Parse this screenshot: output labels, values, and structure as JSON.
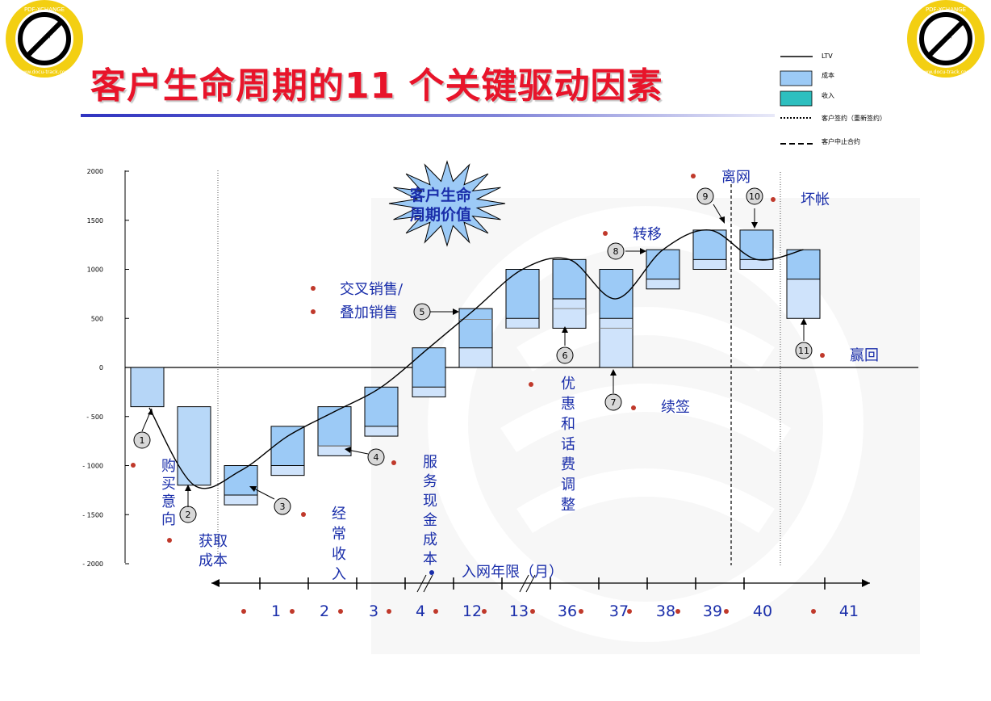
{
  "title": "客户生命周期的11 个关键驱动因素",
  "stamp": {
    "top": "PDF-XCHANGE",
    "mid": "Click to buy NOW!",
    "bottom": "www.docu-track.com"
  },
  "legend": [
    {
      "label": "LTV",
      "kind": "line"
    },
    {
      "label": "成本",
      "kind": "box",
      "color": "#9ccaf6"
    },
    {
      "label": "收入",
      "kind": "box",
      "color": "#2dbfbf"
    },
    {
      "label": "客户签约（重新签约）",
      "kind": "dotted"
    },
    {
      "label": "客户中止合约",
      "kind": "dashed"
    }
  ],
  "star_label": [
    "客户生命",
    "周期价值"
  ],
  "axis_caption": "入网年限（月）",
  "colors": {
    "title": "#e8142a",
    "box_fill": "#9ccaf6",
    "box_light": "#cfe3fb",
    "bullet": "#c0392b",
    "text": "#1a2eaa"
  },
  "chart_data": {
    "type": "waterfall",
    "ylim": [
      -2000,
      2000
    ],
    "y_ticks": [
      2000,
      1500,
      1000,
      500,
      0,
      -500,
      -1000,
      -1500,
      -2000
    ],
    "y_tick_labels": [
      "2000",
      "1500",
      "1000",
      "500",
      "0",
      "- 500",
      "- 1000",
      "- 1500",
      "- 2000"
    ],
    "categories": [
      "1",
      "2",
      "3",
      "4",
      "12",
      "13",
      "36",
      "37",
      "38",
      "39",
      "40",
      "41"
    ],
    "bars": [
      {
        "top": 0,
        "bottom": -400,
        "mid": null
      },
      {
        "top": -400,
        "bottom": -1200,
        "mid": -1200
      },
      {
        "top": -1000,
        "bottom": -1400,
        "mid": -1300
      },
      {
        "top": -600,
        "bottom": -1100,
        "mid": -1000
      },
      {
        "top": -400,
        "bottom": -900,
        "mid": -800
      },
      {
        "top": -200,
        "bottom": -700,
        "mid": -600
      },
      {
        "top": 200,
        "bottom": -300,
        "mid": -200
      },
      {
        "top": 600,
        "bottom": 0,
        "mid": 200
      },
      {
        "top": 1000,
        "bottom": 400,
        "mid": 500
      },
      {
        "top": 1100,
        "bottom": 400,
        "mid": 700
      },
      {
        "top": 1000,
        "bottom": 0,
        "mid": 500
      },
      {
        "top": 1200,
        "bottom": 800,
        "mid": 900
      },
      {
        "top": 1400,
        "bottom": 1000,
        "mid": 1100
      },
      {
        "top": 1400,
        "bottom": 1000,
        "mid": 1100
      },
      {
        "top": 1200,
        "bottom": 500,
        "mid": 900
      }
    ],
    "ltv_line": [
      -400,
      -1200,
      -1050,
      -700,
      -450,
      -200,
      200,
      600,
      1000,
      1100,
      700,
      1200,
      1400,
      1100,
      1200
    ]
  },
  "annotations": {
    "n1": "1",
    "n2": "2",
    "n3": "3",
    "n4": "4",
    "n5": "5",
    "n6": "6",
    "n7": "7",
    "n8": "8",
    "n9": "9",
    "n10": "10",
    "n11": "11",
    "purchase_intent": "购买意向",
    "acquisition_cost": [
      "获取",
      "成本"
    ],
    "regular_income": "经常收入",
    "service_cash_cost": "服务现金成本",
    "cross_sell_1": "交叉销售/",
    "cross_sell_2": "叠加销售",
    "discount_adjust": "优惠和话费调整",
    "renewal": "续签",
    "transfer": "转移",
    "churn": "离网",
    "bad_debt": "坏帐",
    "winback": "赢回"
  }
}
